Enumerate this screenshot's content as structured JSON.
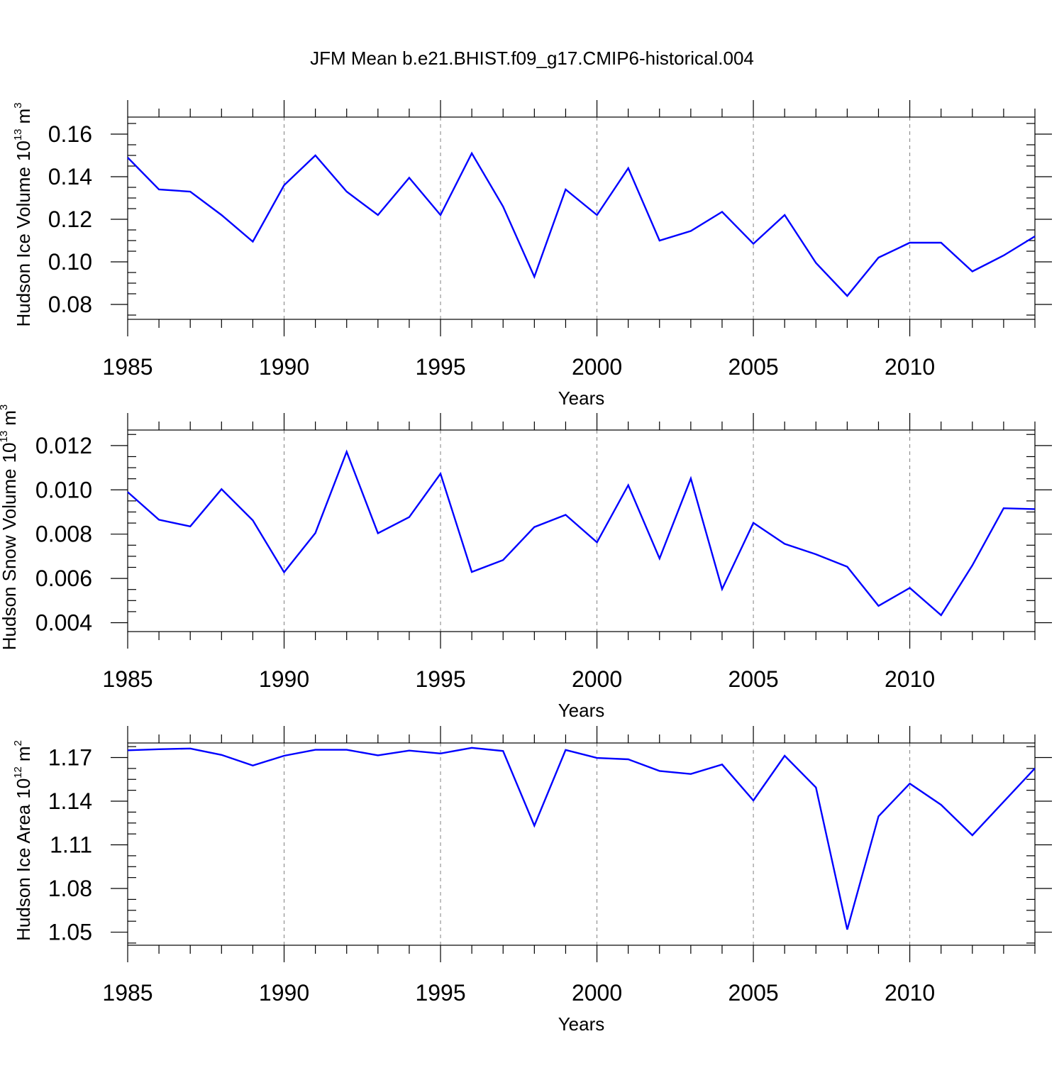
{
  "figure": {
    "title": "JFM Mean b.e21.BHIST.f09_g17.CMIP6-historical.004",
    "line_color": "#0000ff",
    "axis_color": "#000000",
    "grid_color": "#808080"
  },
  "chart_data": [
    {
      "type": "line",
      "ylabel": "Hudson Ice Volume",
      "unit_base": "10",
      "unit_exp": "13",
      "unit_name": "m",
      "unit_power": "3",
      "xlabel": "Years",
      "xlim": [
        1985,
        2014
      ],
      "ylim": [
        0.073,
        0.168
      ],
      "xticks": [
        1985,
        1990,
        1995,
        2000,
        2005,
        2010
      ],
      "xtick_labels": [
        "1985",
        "1990",
        "1995",
        "2000",
        "2005",
        "2010"
      ],
      "yticks": [
        0.08,
        0.1,
        0.12,
        0.14,
        0.16
      ],
      "ytick_labels": [
        "0.08",
        "0.10",
        "0.12",
        "0.14",
        "0.16"
      ],
      "x": [
        1985,
        1986,
        1987,
        1988,
        1989,
        1990,
        1991,
        1992,
        1993,
        1994,
        1995,
        1996,
        1997,
        1998,
        1999,
        2000,
        2001,
        2002,
        2003,
        2004,
        2005,
        2006,
        2007,
        2008,
        2009,
        2010,
        2011,
        2012,
        2013,
        2014
      ],
      "series": [
        {
          "name": "Hudson Ice Volume",
          "values": [
            0.149,
            0.134,
            0.133,
            0.122,
            0.1095,
            0.136,
            0.15,
            0.133,
            0.122,
            0.1395,
            0.122,
            0.151,
            0.126,
            0.093,
            0.134,
            0.122,
            0.144,
            0.11,
            0.1145,
            0.1235,
            0.1085,
            0.122,
            0.0995,
            0.084,
            0.102,
            0.109,
            0.109,
            0.0955,
            0.103,
            0.112
          ]
        }
      ]
    },
    {
      "type": "line",
      "ylabel": "Hudson Snow Volume",
      "unit_base": "10",
      "unit_exp": "13",
      "unit_name": "m",
      "unit_power": "3",
      "xlabel": "Years",
      "xlim": [
        1985,
        2014
      ],
      "ylim": [
        0.0036,
        0.0127
      ],
      "xticks": [
        1985,
        1990,
        1995,
        2000,
        2005,
        2010
      ],
      "xtick_labels": [
        "1985",
        "1990",
        "1995",
        "2000",
        "2005",
        "2010"
      ],
      "yticks": [
        0.004,
        0.006,
        0.008,
        0.01,
        0.012
      ],
      "ytick_labels": [
        "0.004",
        "0.006",
        "0.008",
        "0.010",
        "0.012"
      ],
      "x": [
        1985,
        1986,
        1987,
        1988,
        1989,
        1990,
        1991,
        1992,
        1993,
        1994,
        1995,
        1996,
        1997,
        1998,
        1999,
        2000,
        2001,
        2002,
        2003,
        2004,
        2005,
        2006,
        2007,
        2008,
        2009,
        2010,
        2011,
        2012,
        2013,
        2014
      ],
      "series": [
        {
          "name": "Hudson Snow Volume",
          "values": [
            0.0099,
            0.00865,
            0.00835,
            0.01003,
            0.00862,
            0.00628,
            0.00805,
            0.01172,
            0.00804,
            0.00877,
            0.01073,
            0.00629,
            0.00683,
            0.00832,
            0.00887,
            0.00763,
            0.01021,
            0.0069,
            0.01051,
            0.00552,
            0.00851,
            0.00756,
            0.00709,
            0.00653,
            0.00476,
            0.00557,
            0.00434,
            0.00659,
            0.00917,
            0.00913
          ]
        }
      ]
    },
    {
      "type": "line",
      "ylabel": "Hudson Ice Area",
      "unit_base": "10",
      "unit_exp": "12",
      "unit_name": "m",
      "unit_power": "2",
      "xlabel": "Years",
      "xlim": [
        1985,
        2014
      ],
      "ylim": [
        1.041,
        1.18
      ],
      "xticks": [
        1985,
        1990,
        1995,
        2000,
        2005,
        2010
      ],
      "xtick_labels": [
        "1985",
        "1990",
        "1995",
        "2000",
        "2005",
        "2010"
      ],
      "yticks": [
        1.05,
        1.08,
        1.11,
        1.14,
        1.17
      ],
      "ytick_labels": [
        "1.05",
        "1.08",
        "1.11",
        "1.14",
        "1.17"
      ],
      "x": [
        1985,
        1986,
        1987,
        1988,
        1989,
        1990,
        1991,
        1992,
        1993,
        1994,
        1995,
        1996,
        1997,
        1998,
        1999,
        2000,
        2001,
        2002,
        2003,
        2004,
        2005,
        2006,
        2007,
        2008,
        2009,
        2010,
        2011,
        2012,
        2013,
        2014
      ],
      "series": [
        {
          "name": "Hudson Ice Area",
          "values": [
            1.175,
            1.1757,
            1.1762,
            1.1718,
            1.1645,
            1.1712,
            1.1753,
            1.1753,
            1.1715,
            1.1748,
            1.1728,
            1.1767,
            1.1745,
            1.1232,
            1.1752,
            1.1697,
            1.1688,
            1.1608,
            1.1587,
            1.1652,
            1.1405,
            1.1712,
            1.1494,
            1.0518,
            1.1296,
            1.1521,
            1.1375,
            1.1166,
            1.1396,
            1.1626
          ]
        }
      ]
    }
  ]
}
